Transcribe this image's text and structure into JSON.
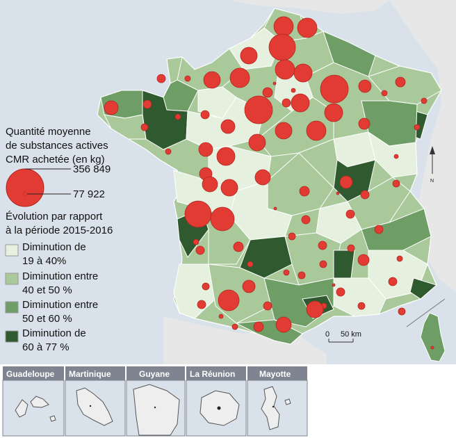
{
  "legend": {
    "size_title_line1": "Quantité moyenne",
    "size_title_line2": "de substances actives",
    "size_title_line3": "CMR achetée (en kg)",
    "size_max_value": "356 849",
    "size_min_value": "77 922",
    "evolution_title_line1": "Évolution par rapport",
    "evolution_title_line2": "à la période 2015-2016",
    "classes": [
      {
        "line1": "Diminution de",
        "line2": "19 à 40%",
        "color": "#e6f0df"
      },
      {
        "line1": "Diminution entre",
        "line2": "40 et 50 %",
        "color": "#a9c99a"
      },
      {
        "line1": "Diminution entre",
        "line2": "50 et 60 %",
        "color": "#6e9d65"
      },
      {
        "line1": "Diminution de",
        "line2": "60 à 77 %",
        "color": "#2f5a30"
      }
    ],
    "bubble_color": "#e23b33"
  },
  "scale": {
    "zero": "0",
    "distance": "50 km"
  },
  "north": "N",
  "insets": [
    "Guadeloupe",
    "Martinique",
    "Guyane",
    "La Réunion",
    "Mayotte"
  ],
  "colors": {
    "sea": "#d9e1ea",
    "inset_header": "#7e8590"
  }
}
